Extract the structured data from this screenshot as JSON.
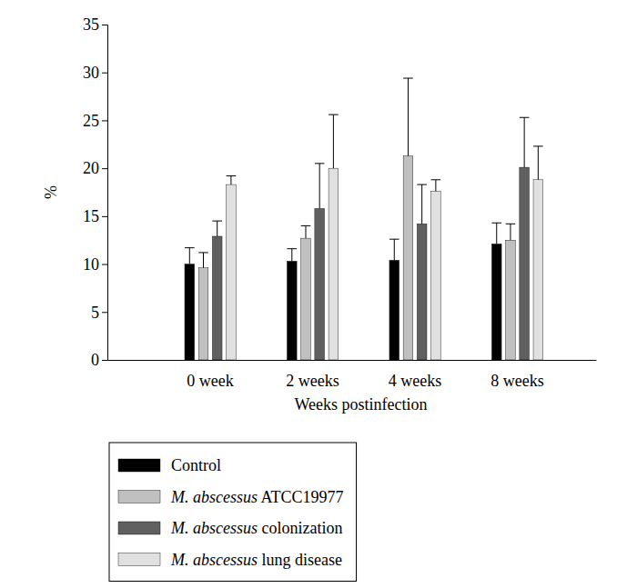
{
  "chart_data": {
    "type": "bar",
    "x_label": "Weeks postinfection",
    "y_label": "%",
    "categories": [
      "0 week",
      "2 weeks",
      "4 weeks",
      "8 weeks"
    ],
    "series": [
      {
        "name": "Control",
        "color": "#000000",
        "values": [
          10.0,
          10.3,
          10.4,
          12.1
        ],
        "errors": [
          1.7,
          1.3,
          2.2,
          2.2
        ]
      },
      {
        "name": "M. abscessus ATCC19977",
        "color": "#c0c0c0",
        "values": [
          9.6,
          12.7,
          21.3,
          12.5
        ],
        "errors": [
          1.6,
          1.3,
          8.1,
          1.7
        ]
      },
      {
        "name": "M. abscessus colonization",
        "color": "#606060",
        "values": [
          12.9,
          15.8,
          14.2,
          20.1
        ],
        "errors": [
          1.6,
          4.7,
          4.1,
          5.2
        ]
      },
      {
        "name": "M. abscessus lung disease",
        "color": "#e0e0e0",
        "values": [
          18.3,
          20.0,
          17.6,
          18.8
        ],
        "errors": [
          0.9,
          5.6,
          1.2,
          3.5
        ]
      }
    ],
    "ylim": [
      0,
      35
    ],
    "yticks": [
      0,
      5,
      10,
      15,
      20,
      25,
      30,
      35
    ],
    "grid": false,
    "legend": "bottom"
  }
}
